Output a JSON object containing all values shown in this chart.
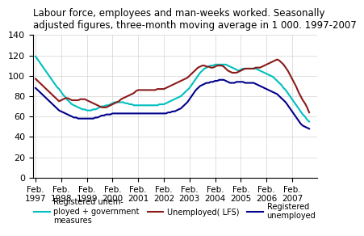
{
  "title": "Labour force, employees and man-weeks worked. Seasonally\nadjusted figures, three-month moving average in 1 000. 1997-2007",
  "ylabel": "",
  "ylim": [
    0,
    140
  ],
  "yticks": [
    0,
    20,
    40,
    60,
    80,
    100,
    120,
    140
  ],
  "colors": {
    "cyan": "#00BFBF",
    "dark_red": "#8B1A1A",
    "dark_blue": "#00008B"
  },
  "legend": [
    "Registered unem-\nployed + government\nmeasures",
    "Unemployed( LFS)",
    "Registered\nunemployed"
  ],
  "x_tick_years": [
    1997,
    1998,
    1999,
    2000,
    2001,
    2002,
    2003,
    2004,
    2005,
    2006,
    2007
  ],
  "cyan_data": [
    119,
    116,
    113,
    110,
    107,
    104,
    101,
    98,
    95,
    92,
    89,
    87,
    84,
    81,
    79,
    76,
    74,
    72,
    71,
    70,
    69,
    68,
    67,
    67,
    66,
    66,
    66,
    67,
    67,
    68,
    69,
    70,
    70,
    71,
    71,
    72,
    73,
    74,
    74,
    74,
    74,
    74,
    73,
    73,
    72,
    72,
    71,
    71,
    71,
    71,
    71,
    71,
    71,
    71,
    71,
    71,
    71,
    71,
    72,
    72,
    72,
    73,
    74,
    75,
    76,
    77,
    78,
    79,
    80,
    82,
    84,
    86,
    88,
    91,
    94,
    97,
    100,
    103,
    105,
    107,
    108,
    109,
    110,
    110,
    111,
    111,
    111,
    111,
    111,
    111,
    110,
    109,
    108,
    107,
    106,
    105,
    106,
    107,
    107,
    107,
    107,
    107,
    107,
    107,
    106,
    105,
    104,
    103,
    102,
    101,
    100,
    99,
    97,
    95,
    93,
    91,
    88,
    86,
    83,
    80,
    77,
    74,
    71,
    68,
    65,
    62,
    60,
    57,
    55
  ],
  "dark_red_data": [
    97,
    95,
    93,
    91,
    89,
    87,
    85,
    83,
    81,
    79,
    77,
    75,
    76,
    77,
    78,
    78,
    77,
    76,
    76,
    76,
    76,
    77,
    77,
    77,
    76,
    75,
    74,
    73,
    72,
    71,
    70,
    69,
    69,
    69,
    70,
    71,
    72,
    73,
    74,
    75,
    77,
    78,
    79,
    80,
    81,
    82,
    83,
    85,
    86,
    86,
    86,
    86,
    86,
    86,
    86,
    86,
    86,
    87,
    87,
    87,
    87,
    88,
    89,
    90,
    91,
    92,
    93,
    94,
    95,
    96,
    97,
    98,
    100,
    102,
    104,
    106,
    108,
    109,
    110,
    110,
    109,
    109,
    108,
    108,
    109,
    110,
    110,
    110,
    109,
    107,
    105,
    104,
    103,
    103,
    103,
    104,
    105,
    106,
    107,
    107,
    107,
    107,
    107,
    108,
    108,
    108,
    109,
    110,
    111,
    112,
    113,
    114,
    115,
    116,
    115,
    113,
    111,
    108,
    105,
    101,
    97,
    93,
    89,
    84,
    80,
    76,
    73,
    69,
    64
  ],
  "dark_blue_data": [
    88,
    86,
    84,
    82,
    80,
    78,
    76,
    74,
    72,
    70,
    68,
    66,
    65,
    64,
    63,
    62,
    61,
    60,
    59,
    59,
    58,
    58,
    58,
    58,
    58,
    58,
    58,
    58,
    59,
    59,
    60,
    61,
    61,
    62,
    62,
    62,
    63,
    63,
    63,
    63,
    63,
    63,
    63,
    63,
    63,
    63,
    63,
    63,
    63,
    63,
    63,
    63,
    63,
    63,
    63,
    63,
    63,
    63,
    63,
    63,
    63,
    63,
    64,
    64,
    65,
    65,
    66,
    67,
    68,
    70,
    72,
    74,
    77,
    80,
    83,
    86,
    88,
    90,
    91,
    92,
    93,
    93,
    94,
    94,
    95,
    95,
    96,
    96,
    96,
    95,
    94,
    93,
    93,
    93,
    94,
    94,
    94,
    94,
    93,
    93,
    93,
    93,
    93,
    92,
    91,
    90,
    89,
    88,
    87,
    86,
    85,
    84,
    83,
    82,
    80,
    78,
    76,
    74,
    71,
    68,
    65,
    62,
    59,
    56,
    53,
    51,
    50,
    49,
    48
  ]
}
